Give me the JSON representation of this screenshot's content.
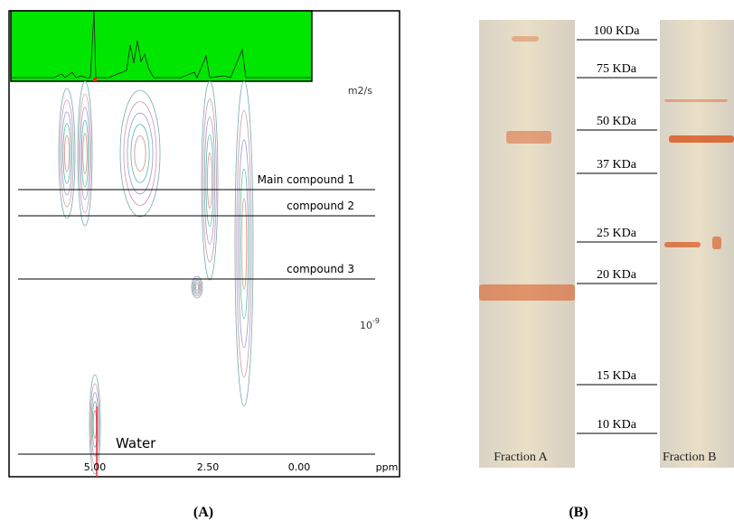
{
  "panel_a": {
    "axis_unit": "m2/s",
    "axis_tick": {
      "base": "10",
      "exponent": "-9"
    },
    "x_ticks": [
      "5.00",
      "2.50",
      "0.00"
    ],
    "x_unit": "ppm",
    "compounds": [
      "Main compound 1",
      "compound 2",
      "compound 3",
      "Water"
    ],
    "label": "(A)"
  },
  "panel_b": {
    "markers": [
      "100 KDa",
      "75 KDa",
      "50 KDa",
      "37 KDa",
      "25 KDa",
      "20 KDa",
      "15 KDa",
      "10 KDa"
    ],
    "lanes": [
      "Fraction A",
      "Fraction B"
    ],
    "label": "(B)"
  }
}
